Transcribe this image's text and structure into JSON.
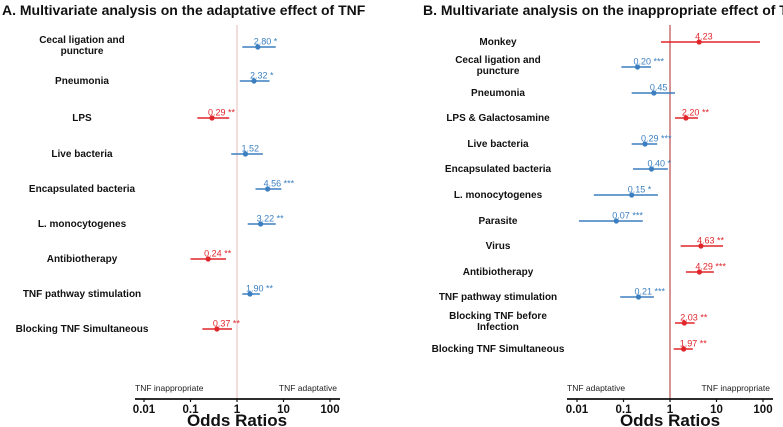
{
  "colors": {
    "adaptive_blue": "#3b7fc0",
    "inappropriate_red": "#e0262b",
    "refline_a": "#ebcaca",
    "refline_b": "#c05a5a"
  },
  "chart_data": [
    {
      "type": "forest",
      "title": "A. Multivariate analysis on the adaptative effect of TNF",
      "xlabel": "Odds Ratios",
      "xscale": "log",
      "xlim": [
        0.01,
        100
      ],
      "ticks": [
        "0.01",
        "0.1",
        "1",
        "10",
        "100"
      ],
      "left_direction": "TNF inappropriate",
      "right_direction": "TNF adaptative",
      "rows": [
        {
          "label": [
            "Cecal ligation and",
            "puncture"
          ],
          "or": 2.8,
          "lo": 1.3,
          "hi": 6.8,
          "value_text": "2.80 *",
          "color": "blue"
        },
        {
          "label": [
            "Pneumonia"
          ],
          "or": 2.32,
          "lo": 1.15,
          "hi": 5.0,
          "value_text": "2.32 *",
          "color": "blue"
        },
        {
          "label": [
            "LPS"
          ],
          "or": 0.29,
          "lo": 0.14,
          "hi": 0.68,
          "value_text": "0.29 **",
          "color": "red"
        },
        {
          "label": [
            "Live bacteria"
          ],
          "or": 1.52,
          "lo": 0.75,
          "hi": 3.6,
          "value_text": "1.52",
          "color": "blue"
        },
        {
          "label": [
            "Encapsulated bacteria"
          ],
          "or": 4.56,
          "lo": 2.5,
          "hi": 9.0,
          "value_text": "4.56 ***",
          "color": "blue"
        },
        {
          "label": [
            "L. monocytogenes"
          ],
          "or": 3.22,
          "lo": 1.7,
          "hi": 6.8,
          "value_text": "3.22 **",
          "color": "blue"
        },
        {
          "label": [
            "Antibiotherapy"
          ],
          "or": 0.24,
          "lo": 0.1,
          "hi": 0.58,
          "value_text": "0.24 **",
          "color": "red"
        },
        {
          "label": [
            "TNF pathway stimulation"
          ],
          "or": 1.9,
          "lo": 1.3,
          "hi": 3.1,
          "value_text": "1.90 **",
          "color": "blue"
        },
        {
          "label": [
            "Blocking TNF Simultaneous"
          ],
          "or": 0.37,
          "lo": 0.18,
          "hi": 0.78,
          "value_text": "0.37 **",
          "color": "red"
        }
      ]
    },
    {
      "type": "forest",
      "title": "B. Multivariate analysis on the inappropriate effect of TNF",
      "xlabel": "Odds Ratios",
      "xscale": "log",
      "xlim": [
        0.01,
        100
      ],
      "ticks": [
        "0.01",
        "0.1",
        "1",
        "10",
        "100"
      ],
      "left_direction": "TNF adaptative",
      "right_direction": "TNF inappropriate",
      "rows": [
        {
          "label": [
            "Monkey"
          ],
          "or": 4.23,
          "lo": 0.64,
          "hi": 86,
          "value_text": "4.23",
          "color": "red"
        },
        {
          "label": [
            "Cecal ligation and",
            "puncture"
          ],
          "or": 0.2,
          "lo": 0.09,
          "hi": 0.39,
          "value_text": "0.20 ***",
          "color": "blue"
        },
        {
          "label": [
            "Pneumonia"
          ],
          "or": 0.45,
          "lo": 0.15,
          "hi": 1.28,
          "value_text": "0.45",
          "color": "blue"
        },
        {
          "label": [
            "LPS & Galactosamine"
          ],
          "or": 2.2,
          "lo": 1.28,
          "hi": 4.0,
          "value_text": "2.20 **",
          "color": "red"
        },
        {
          "label": [
            "Live bacteria"
          ],
          "or": 0.29,
          "lo": 0.15,
          "hi": 0.53,
          "value_text": "0.29 ***",
          "color": "blue"
        },
        {
          "label": [
            "Encapsulated bacteria"
          ],
          "or": 0.4,
          "lo": 0.16,
          "hi": 0.9,
          "value_text": "0.40 *",
          "color": "blue"
        },
        {
          "label": [
            "L. monocytogenes"
          ],
          "or": 0.15,
          "lo": 0.023,
          "hi": 0.55,
          "value_text": "0.15 *",
          "color": "blue"
        },
        {
          "label": [
            "Parasite"
          ],
          "or": 0.07,
          "lo": 0.011,
          "hi": 0.26,
          "value_text": "0.07 ***",
          "color": "blue"
        },
        {
          "label": [
            "Virus"
          ],
          "or": 4.63,
          "lo": 1.7,
          "hi": 13.8,
          "value_text": "4.63 **",
          "color": "red"
        },
        {
          "label": [
            "Antibiotherapy"
          ],
          "or": 4.29,
          "lo": 2.2,
          "hi": 8.8,
          "value_text": "4.29 ***",
          "color": "red"
        },
        {
          "label": [
            "TNF pathway stimulation"
          ],
          "or": 0.21,
          "lo": 0.085,
          "hi": 0.45,
          "value_text": "0.21 ***",
          "color": "blue"
        },
        {
          "label": [
            "Blocking TNF before",
            "Infection"
          ],
          "or": 2.03,
          "lo": 1.28,
          "hi": 3.4,
          "value_text": "2.03 **",
          "color": "red"
        },
        {
          "label": [
            "Blocking TNF Simultaneous"
          ],
          "or": 1.97,
          "lo": 1.2,
          "hi": 3.1,
          "value_text": "1.97 **",
          "color": "red"
        }
      ]
    }
  ]
}
